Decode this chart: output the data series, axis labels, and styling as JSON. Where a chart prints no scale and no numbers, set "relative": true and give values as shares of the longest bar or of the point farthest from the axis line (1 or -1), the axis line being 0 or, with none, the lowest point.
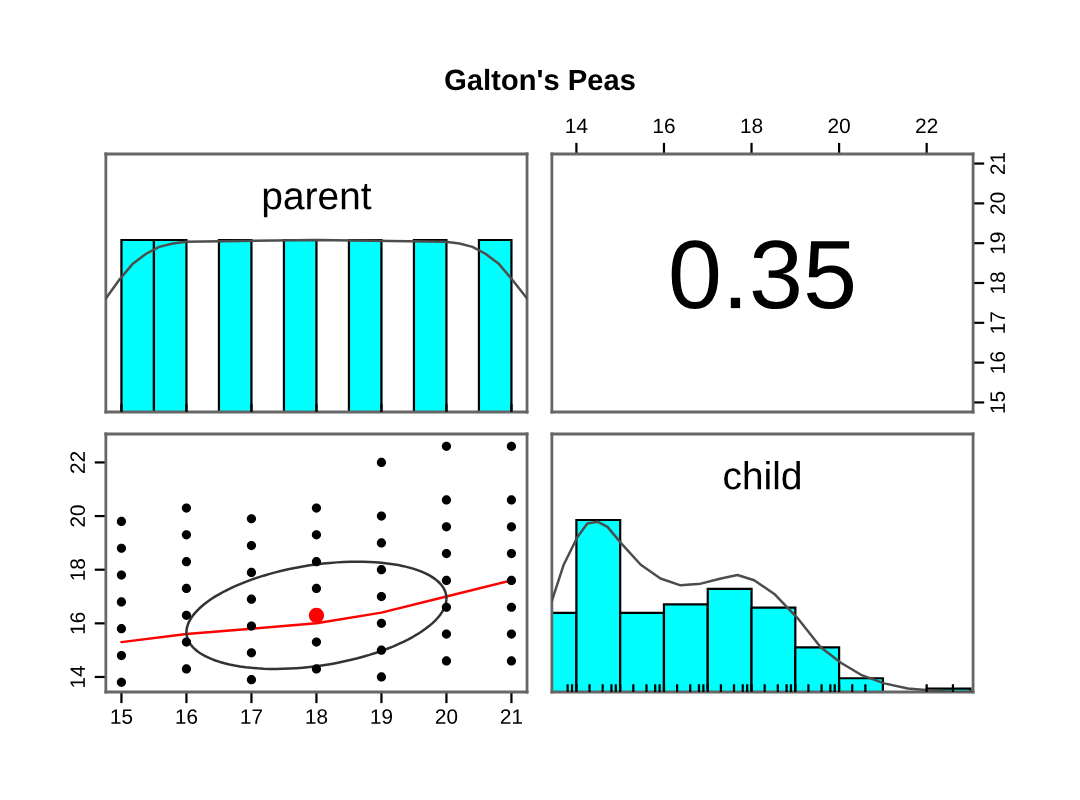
{
  "chart_data": [
    {
      "type": "histogram",
      "title": "Galton's Peas",
      "annotations": [
        "parent"
      ],
      "relative": true,
      "color": "#00ffff",
      "bins": [
        15,
        15.5,
        16,
        16.5,
        17,
        17.5,
        18,
        18.5,
        19,
        19.5,
        20,
        20.5,
        21
      ],
      "values": [
        1,
        1,
        0,
        1,
        0,
        1,
        0,
        1,
        0,
        1,
        0,
        1
      ],
      "xlim": [
        14.76,
        21.24
      ],
      "tick_labels": false,
      "series": [
        {
          "type": "line",
          "color": "#4d4d4d",
          "x": [
            14.76,
            14.97,
            15.17,
            15.38,
            15.58,
            15.79,
            15.99,
            18.0,
            19.99,
            20.2,
            20.4,
            20.6,
            20.81,
            21.01,
            21.24
          ],
          "values": [
            0.66,
            0.77,
            0.86,
            0.92,
            0.96,
            0.98,
            0.99,
            1.0,
            0.99,
            0.98,
            0.96,
            0.92,
            0.86,
            0.77,
            0.66
          ]
        }
      ]
    },
    {
      "type": "scatter",
      "annotations": [
        "0.35"
      ],
      "xlim": [
        13.44,
        23.06
      ],
      "xticks": [
        14,
        16,
        18,
        20,
        22
      ],
      "ylim": [
        14.76,
        21.24
      ],
      "yticks": [
        15,
        16,
        17,
        18,
        19,
        20,
        21
      ]
    },
    {
      "type": "scatter",
      "xlim": [
        14.76,
        21.24
      ],
      "xticks": [
        15,
        16,
        17,
        18,
        19,
        20,
        21
      ],
      "ylim": [
        13.44,
        23.06
      ],
      "yticks": [
        14,
        16,
        18,
        20,
        22
      ],
      "series": [
        {
          "color": "#000000",
          "marker": "circle",
          "x": [
            15,
            15,
            15,
            15,
            15,
            15,
            15,
            16,
            16,
            16,
            16,
            16,
            16,
            16,
            17,
            17,
            17,
            17,
            17,
            17,
            17,
            18,
            18,
            18,
            18,
            18,
            18,
            19,
            19,
            19,
            19,
            19,
            19,
            19,
            19,
            20,
            20,
            20,
            20,
            20,
            20,
            20,
            20,
            21,
            21,
            21,
            21,
            21,
            21,
            21,
            21
          ],
          "values": [
            13.8,
            14.8,
            15.8,
            16.8,
            17.8,
            18.8,
            19.8,
            14.3,
            15.3,
            16.3,
            17.3,
            18.3,
            19.3,
            20.3,
            13.9,
            14.9,
            15.9,
            16.9,
            17.9,
            18.9,
            19.9,
            14.3,
            15.3,
            17.3,
            18.3,
            19.3,
            20.3,
            14.0,
            15.0,
            16.0,
            17.0,
            18.0,
            19.0,
            20.0,
            22.0,
            14.6,
            15.6,
            16.6,
            17.6,
            18.6,
            19.6,
            20.6,
            22.6,
            14.6,
            15.6,
            16.6,
            17.6,
            18.6,
            19.6,
            20.6,
            22.6
          ]
        },
        {
          "type": "line",
          "color": "#ff0000",
          "x": [
            15,
            16,
            17,
            18,
            19,
            20,
            21
          ],
          "values": [
            15.3,
            15.6,
            15.8,
            16.0,
            16.4,
            17.0,
            17.6
          ]
        },
        {
          "color": "#ff0000",
          "marker": "circle",
          "x": [
            18.0
          ],
          "values": [
            16.3
          ]
        }
      ]
    },
    {
      "type": "histogram",
      "annotations": [
        "child"
      ],
      "relative": true,
      "color": "#00ffff",
      "bins": [
        13.44,
        14,
        15,
        16,
        17,
        18,
        19,
        20,
        21,
        22,
        23
      ],
      "values": [
        0.46,
        1,
        0.46,
        0.51,
        0.6,
        0.49,
        0.26,
        0.08,
        0,
        0.02
      ],
      "xlim": [
        13.44,
        23.06
      ],
      "tick_labels": false,
      "series": [
        {
          "type": "line",
          "color": "#4d4d4d",
          "x": [
            13.44,
            13.71,
            14.02,
            14.25,
            14.48,
            14.71,
            15.04,
            15.47,
            15.92,
            16.38,
            16.84,
            17.3,
            17.68,
            18.06,
            18.52,
            19.05,
            19.58,
            20.04,
            20.5,
            21.03,
            21.57,
            22.05,
            22.63,
            23.06
          ],
          "values": [
            0.53,
            0.74,
            0.9,
            0.98,
            0.99,
            0.96,
            0.86,
            0.74,
            0.66,
            0.62,
            0.63,
            0.66,
            0.68,
            0.65,
            0.57,
            0.43,
            0.26,
            0.17,
            0.1,
            0.05,
            0.02,
            0.01,
            0.0,
            0.0
          ]
        }
      ]
    }
  ]
}
